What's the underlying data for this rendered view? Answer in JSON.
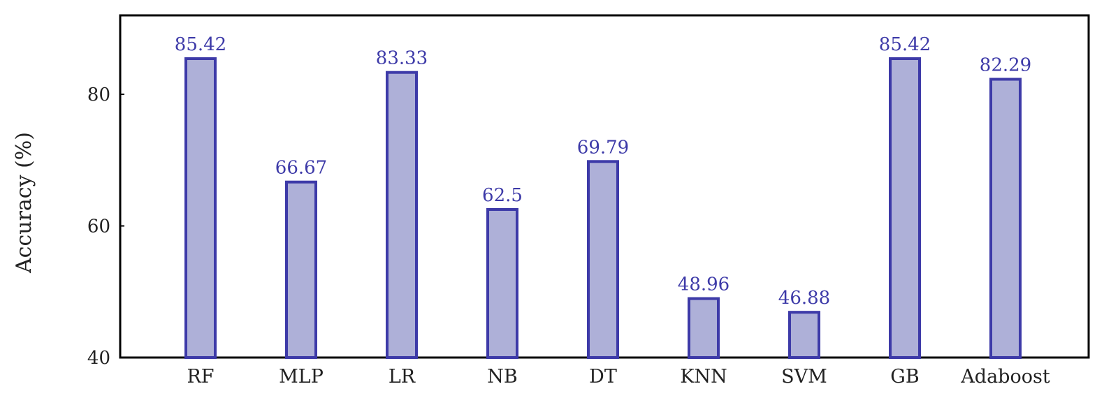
{
  "chart_data": {
    "type": "bar",
    "title": "",
    "xlabel": "",
    "ylabel": "Accuracy (%)",
    "categories": [
      "RF",
      "MLP",
      "LR",
      "NB",
      "DT",
      "KNN",
      "SVM",
      "GB",
      "Adaboost"
    ],
    "values": [
      85.42,
      66.67,
      83.33,
      62.5,
      69.79,
      48.96,
      46.88,
      85.42,
      82.29
    ],
    "data_labels": [
      "85.42",
      "66.67",
      "83.33",
      "62.5",
      "69.79",
      "48.96",
      "46.88",
      "85.42",
      "82.29"
    ],
    "y_ticks": [
      40,
      60,
      80
    ],
    "y_tick_labels": [
      "40",
      "60",
      "80"
    ],
    "ylim": [
      40,
      92
    ],
    "grid": false,
    "legend": "none",
    "colors": {
      "bar_fill": "#aeb0d8",
      "bar_edge": "#3d3aa8",
      "data_label": "#3d3aa8",
      "axis": "#000000"
    }
  }
}
